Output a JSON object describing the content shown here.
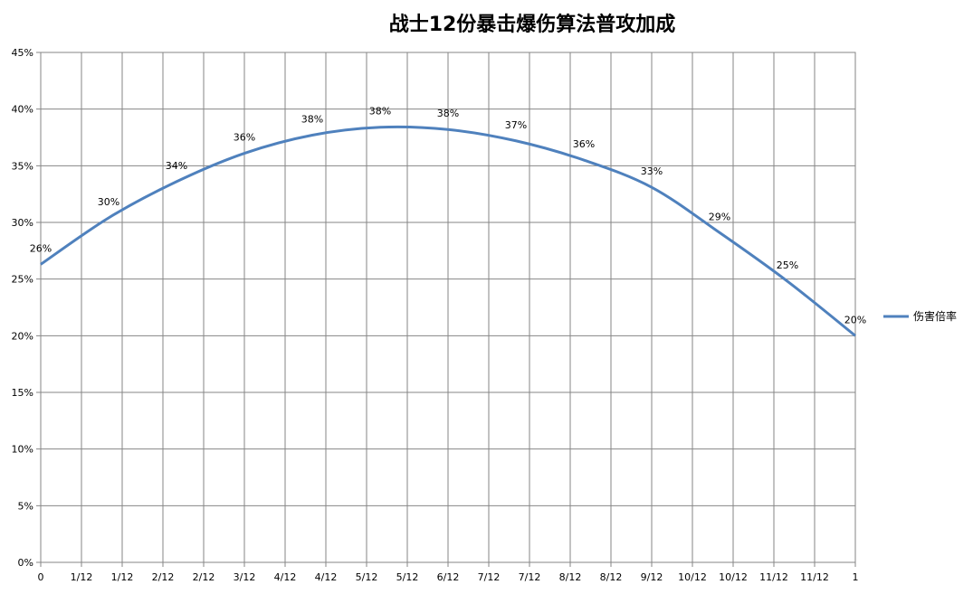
{
  "chart_data": {
    "type": "line",
    "title": "战士12份暴击爆伤算法普攻加成",
    "xlabel": "",
    "ylabel": "",
    "x_tick_labels": [
      "0",
      "1/12",
      "1/12",
      "2/12",
      "2/12",
      "3/12",
      "4/12",
      "4/12",
      "5/12",
      "5/12",
      "6/12",
      "7/12",
      "7/12",
      "8/12",
      "8/12",
      "9/12",
      "10/12",
      "10/12",
      "11/12",
      "11/12",
      "1"
    ],
    "y_tick_labels": [
      "0%",
      "5%",
      "10%",
      "15%",
      "20%",
      "25%",
      "30%",
      "35%",
      "40%",
      "45%"
    ],
    "ylim": [
      0,
      45
    ],
    "grid": true,
    "legend_position": "right",
    "series": [
      {
        "name": "伤害倍率",
        "color": "#4f81bd",
        "points": [
          {
            "x": 0,
            "y": 26.3,
            "label": "26%"
          },
          {
            "x": 0.0833,
            "y": 30.4,
            "label": "30%"
          },
          {
            "x": 0.1667,
            "y": 33.6,
            "label": "34%"
          },
          {
            "x": 0.25,
            "y": 36.1,
            "label": "36%"
          },
          {
            "x": 0.3333,
            "y": 37.7,
            "label": "38%"
          },
          {
            "x": 0.4167,
            "y": 38.4,
            "label": "38%"
          },
          {
            "x": 0.5,
            "y": 38.2,
            "label": "38%"
          },
          {
            "x": 0.5833,
            "y": 37.2,
            "label": "37%"
          },
          {
            "x": 0.6667,
            "y": 35.5,
            "label": "36%"
          },
          {
            "x": 0.75,
            "y": 33.1,
            "label": "33%"
          },
          {
            "x": 0.8333,
            "y": 29.1,
            "label": "29%"
          },
          {
            "x": 0.9167,
            "y": 24.8,
            "label": "25%"
          },
          {
            "x": 1,
            "y": 20.0,
            "label": "20%"
          }
        ]
      }
    ]
  }
}
